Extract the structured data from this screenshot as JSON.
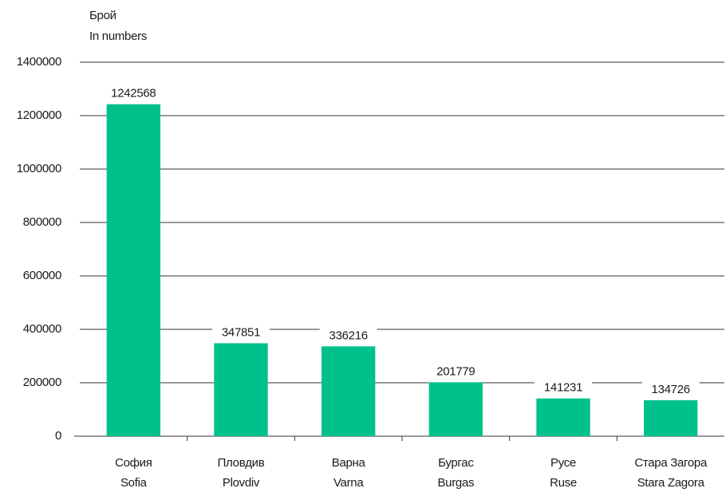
{
  "chart_data": {
    "type": "bar",
    "ylabel": [
      "Брой",
      "In numbers"
    ],
    "categories": [
      [
        "София",
        "Sofia"
      ],
      [
        "Пловдив",
        "Plovdiv"
      ],
      [
        "Варна",
        "Varna"
      ],
      [
        "Бургас",
        "Burgas"
      ],
      [
        "Русе",
        "Ruse"
      ],
      [
        "Стара Загора",
        "Stara Zagora"
      ]
    ],
    "values": [
      1242568,
      347851,
      336216,
      201779,
      141231,
      134726
    ],
    "color": "#00c08b",
    "ylim": [
      0,
      1400000
    ],
    "yticks": [
      0,
      200000,
      400000,
      600000,
      800000,
      1000000,
      1200000,
      1400000
    ],
    "grid": true
  }
}
